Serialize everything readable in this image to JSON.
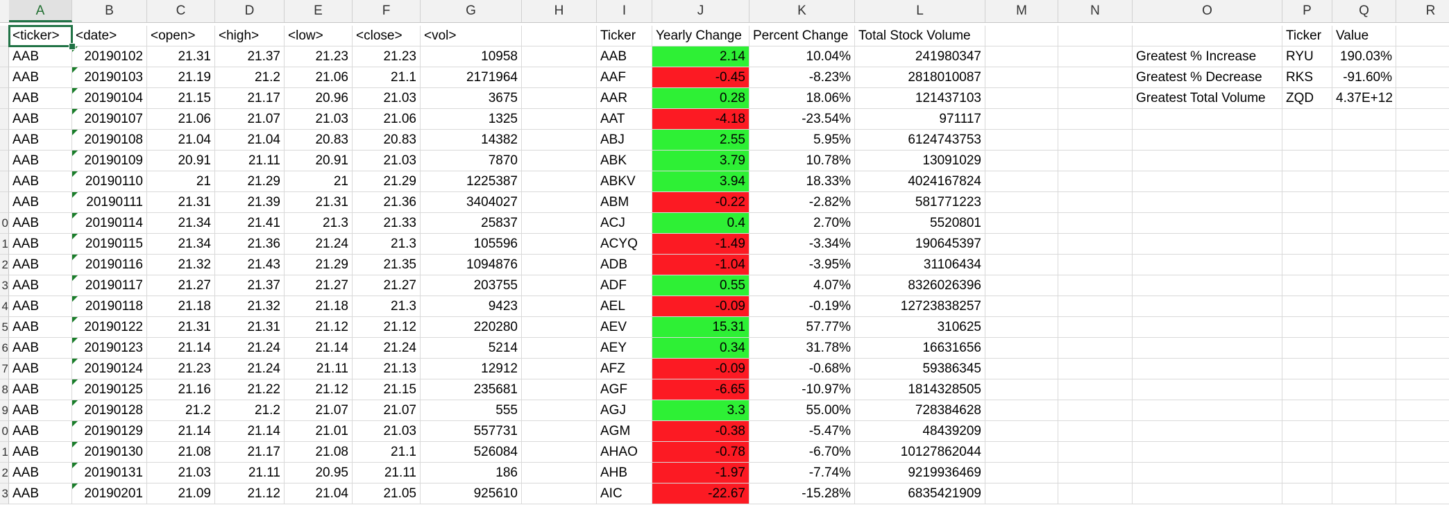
{
  "spreadsheet": {
    "column_letters": [
      "A",
      "B",
      "C",
      "D",
      "E",
      "F",
      "G",
      "H",
      "I",
      "J",
      "K",
      "L",
      "M",
      "N",
      "O",
      "P",
      "Q",
      "R"
    ],
    "active_column": "A",
    "row_numbers": [
      "",
      "",
      "",
      "",
      "",
      "",
      "",
      "",
      "",
      "0",
      "1",
      "2",
      "3",
      "4",
      "5",
      "6",
      "7",
      "8",
      "9",
      "0",
      "1",
      "2",
      "3"
    ],
    "stock_headers": [
      "<ticker>",
      "<date>",
      "<open>",
      "<high>",
      "<low>",
      "<close>",
      "<vol>"
    ],
    "stock_rows": [
      [
        "AAB",
        "20190102",
        "21.31",
        "21.37",
        "21.23",
        "21.23",
        "10958"
      ],
      [
        "AAB",
        "20190103",
        "21.19",
        "21.2",
        "21.06",
        "21.1",
        "2171964"
      ],
      [
        "AAB",
        "20190104",
        "21.15",
        "21.17",
        "20.96",
        "21.03",
        "3675"
      ],
      [
        "AAB",
        "20190107",
        "21.06",
        "21.07",
        "21.03",
        "21.06",
        "1325"
      ],
      [
        "AAB",
        "20190108",
        "21.04",
        "21.04",
        "20.83",
        "20.83",
        "14382"
      ],
      [
        "AAB",
        "20190109",
        "20.91",
        "21.11",
        "20.91",
        "21.03",
        "7870"
      ],
      [
        "AAB",
        "20190110",
        "21",
        "21.29",
        "21",
        "21.29",
        "1225387"
      ],
      [
        "AAB",
        "20190111",
        "21.31",
        "21.39",
        "21.31",
        "21.36",
        "3404027"
      ],
      [
        "AAB",
        "20190114",
        "21.34",
        "21.41",
        "21.3",
        "21.33",
        "25837"
      ],
      [
        "AAB",
        "20190115",
        "21.34",
        "21.36",
        "21.24",
        "21.3",
        "105596"
      ],
      [
        "AAB",
        "20190116",
        "21.32",
        "21.43",
        "21.29",
        "21.35",
        "1094876"
      ],
      [
        "AAB",
        "20190117",
        "21.27",
        "21.37",
        "21.27",
        "21.27",
        "203755"
      ],
      [
        "AAB",
        "20190118",
        "21.18",
        "21.32",
        "21.18",
        "21.3",
        "9423"
      ],
      [
        "AAB",
        "20190122",
        "21.31",
        "21.31",
        "21.12",
        "21.12",
        "220280"
      ],
      [
        "AAB",
        "20190123",
        "21.14",
        "21.24",
        "21.14",
        "21.24",
        "5214"
      ],
      [
        "AAB",
        "20190124",
        "21.23",
        "21.24",
        "21.11",
        "21.13",
        "12912"
      ],
      [
        "AAB",
        "20190125",
        "21.16",
        "21.22",
        "21.12",
        "21.15",
        "235681"
      ],
      [
        "AAB",
        "20190128",
        "21.2",
        "21.2",
        "21.07",
        "21.07",
        "555"
      ],
      [
        "AAB",
        "20190129",
        "21.14",
        "21.14",
        "21.01",
        "21.03",
        "557731"
      ],
      [
        "AAB",
        "20190130",
        "21.08",
        "21.17",
        "21.08",
        "21.1",
        "526084"
      ],
      [
        "AAB",
        "20190131",
        "21.03",
        "21.11",
        "20.95",
        "21.11",
        "186"
      ],
      [
        "AAB",
        "20190201",
        "21.09",
        "21.12",
        "21.04",
        "21.05",
        "925610"
      ]
    ],
    "summary_headers": [
      "Ticker",
      "Yearly Change",
      "Percent Change",
      "Total Stock Volume"
    ],
    "summary_rows": [
      [
        "AAB",
        "2.14",
        "10.04%",
        "241980347"
      ],
      [
        "AAF",
        "-0.45",
        "-8.23%",
        "2818010087"
      ],
      [
        "AAR",
        "0.28",
        "18.06%",
        "121437103"
      ],
      [
        "AAT",
        "-4.18",
        "-23.54%",
        "971117"
      ],
      [
        "ABJ",
        "2.55",
        "5.95%",
        "6124743753"
      ],
      [
        "ABK",
        "3.79",
        "10.78%",
        "13091029"
      ],
      [
        "ABKV",
        "3.94",
        "18.33%",
        "4024167824"
      ],
      [
        "ABM",
        "-0.22",
        "-2.82%",
        "581771223"
      ],
      [
        "ACJ",
        "0.4",
        "2.70%",
        "5520801"
      ],
      [
        "ACYQ",
        "-1.49",
        "-3.34%",
        "190645397"
      ],
      [
        "ADB",
        "-1.04",
        "-3.95%",
        "31106434"
      ],
      [
        "ADF",
        "0.55",
        "4.07%",
        "8326026396"
      ],
      [
        "AEL",
        "-0.09",
        "-0.19%",
        "12723838257"
      ],
      [
        "AEV",
        "15.31",
        "57.77%",
        "310625"
      ],
      [
        "AEY",
        "0.34",
        "31.78%",
        "16631656"
      ],
      [
        "AFZ",
        "-0.09",
        "-0.68%",
        "59386345"
      ],
      [
        "AGF",
        "-6.65",
        "-10.97%",
        "1814328505"
      ],
      [
        "AGJ",
        "3.3",
        "55.00%",
        "728384628"
      ],
      [
        "AGM",
        "-0.38",
        "-5.47%",
        "48439209"
      ],
      [
        "AHAO",
        "-0.78",
        "-6.70%",
        "10127862044"
      ],
      [
        "AHB",
        "-1.97",
        "-7.74%",
        "9219936469"
      ],
      [
        "AIC",
        "-22.67",
        "-15.28%",
        "6835421909"
      ]
    ],
    "greatest_headers": [
      "Ticker",
      "Value"
    ],
    "greatest_rows": [
      [
        "Greatest % Increase",
        "RYU",
        "190.03%"
      ],
      [
        "Greatest % Decrease",
        "RKS",
        "-91.60%"
      ],
      [
        "Greatest Total Volume",
        "ZQD",
        "4.37E+12"
      ]
    ],
    "colors": {
      "positive": "#2ef035",
      "negative": "#fc1a23",
      "accent": "#217346"
    }
  }
}
